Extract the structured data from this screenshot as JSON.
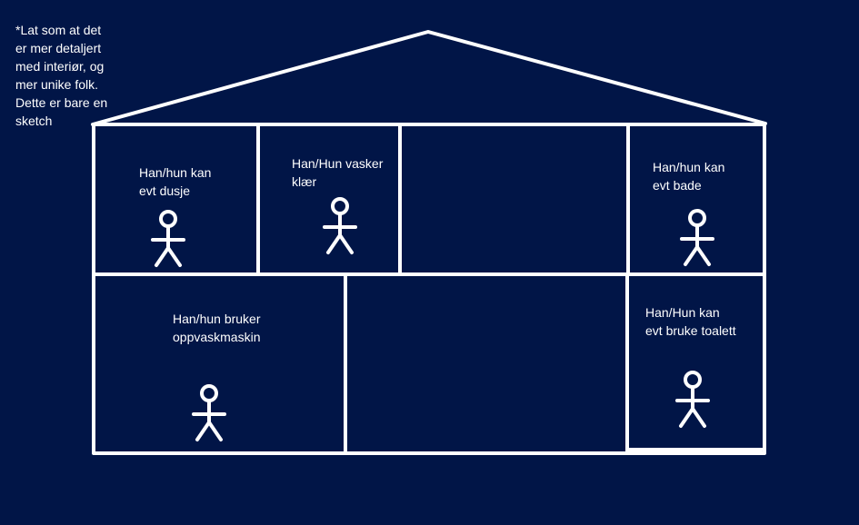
{
  "colors": {
    "background": "#011547",
    "lines": "#ffffff",
    "text": "#ffffff"
  },
  "note": "*Lat som at det\ner mer detaljert\nmed interiør, og\nmer unike folk.\nDette er bare en\nsketch",
  "rooms": [
    {
      "id": "shower",
      "label": "Han/hun kan\nevt dusje"
    },
    {
      "id": "laundry",
      "label": "Han/Hun vasker\nklær"
    },
    {
      "id": "bath",
      "label": "Han/hun kan\nevt bade"
    },
    {
      "id": "kitchen",
      "label": "Han/hun bruker\noppvaskmaskin"
    },
    {
      "id": "toilet",
      "label": "Han/Hun kan\nevt bruke toalett"
    }
  ]
}
